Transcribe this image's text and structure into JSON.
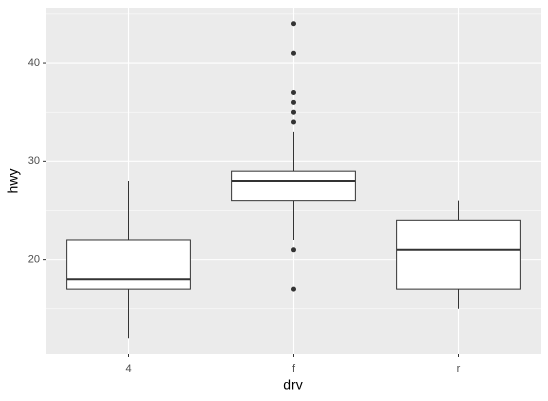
{
  "chart_data": {
    "type": "boxplot",
    "x_label": "drv",
    "y_label": "hwy",
    "categories": [
      "4",
      "f",
      "r"
    ],
    "boxes": [
      {
        "min": 12,
        "q1": 17,
        "median": 18,
        "q3": 22,
        "max": 28,
        "outliers": []
      },
      {
        "min": 22,
        "q1": 26,
        "median": 28,
        "q3": 29,
        "max": 33,
        "outliers": [
          44,
          41,
          37,
          36,
          35,
          34,
          21,
          17
        ]
      },
      {
        "min": 15,
        "q1": 17,
        "median": 21,
        "q3": 24,
        "max": 26,
        "outliers": []
      }
    ],
    "ylim": [
      10.4,
      45.6
    ],
    "yticks": [
      20,
      30,
      40
    ],
    "minor_yticks": [
      15,
      25,
      35,
      45
    ],
    "grid": true,
    "fill": "#ffffff",
    "line_color": "#333333",
    "panel_color": "#ebebeb"
  }
}
